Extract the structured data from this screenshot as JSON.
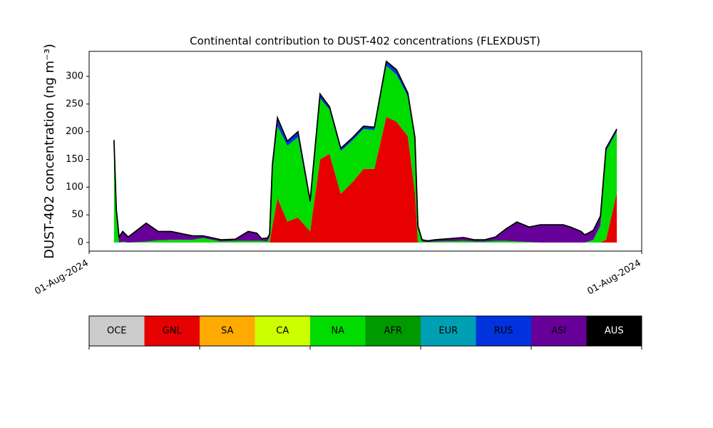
{
  "chart_data": {
    "type": "stacked-area",
    "title": "Continental contribution to DUST-402 concentrations (FLEXDUST)",
    "y_label": "DUST-402 concentration (ng m⁻³)",
    "x": [
      1.08,
      1.18,
      1.3,
      1.46,
      1.7,
      2.48,
      3.0,
      3.56,
      4.49,
      4.95,
      5.73,
      6.35,
      6.91,
      7.28,
      7.49,
      7.74,
      7.84,
      7.96,
      8.18,
      8.61,
      9.07,
      9.6,
      10.03,
      10.44,
      10.93,
      11.46,
      11.92,
      12.39,
      12.91,
      13.35,
      13.84,
      14.15,
      14.28,
      14.46,
      14.71,
      15.02,
      16.26,
      16.72,
      17.19,
      17.65,
      18.12,
      18.58,
      19.11,
      19.6,
      20.59,
      20.9,
      21.37,
      21.52,
      21.68,
      21.9,
      22.21,
      22.45,
      22.92
    ],
    "series": [
      {
        "name": "GNL",
        "color": "#e60000",
        "values": [
          0,
          0,
          0,
          0,
          0,
          0,
          0,
          0,
          0,
          0,
          0,
          0,
          0,
          0,
          0,
          0,
          0,
          30,
          80,
          38,
          45,
          20,
          150,
          160,
          88,
          110,
          133,
          133,
          227,
          218,
          192,
          90,
          0,
          0,
          0,
          0,
          0,
          0,
          0,
          0,
          0,
          0,
          0,
          0,
          0,
          0,
          0,
          0,
          0,
          0,
          0,
          5,
          90
        ]
      },
      {
        "name": "NA",
        "color": "#00dc00",
        "values": [
          180,
          50,
          0,
          2,
          0,
          2,
          4,
          5,
          5,
          8,
          2,
          3,
          3,
          3,
          3,
          2,
          10,
          100,
          130,
          137,
          145,
          50,
          110,
          80,
          77,
          75,
          72,
          70,
          92,
          85,
          72,
          95,
          25,
          2,
          1,
          2,
          3,
          2,
          2,
          3,
          3,
          2,
          1,
          0,
          0,
          0,
          0,
          0,
          2,
          5,
          30,
          160,
          110
        ]
      },
      {
        "name": "RUS",
        "color": "#0033dd",
        "values": [
          3,
          2,
          0,
          0,
          0,
          0,
          0,
          0,
          0,
          0,
          0,
          0,
          0,
          0,
          0,
          0,
          0,
          5,
          10,
          8,
          10,
          5,
          8,
          5,
          5,
          5,
          5,
          5,
          8,
          9,
          6,
          5,
          2,
          0,
          0,
          0,
          0,
          0,
          0,
          0,
          0,
          0,
          0,
          0,
          0,
          0,
          0,
          0,
          0,
          0,
          3,
          5,
          5
        ]
      },
      {
        "name": "ASI",
        "color": "#660099",
        "values": [
          2,
          8,
          10,
          18,
          10,
          33,
          16,
          15,
          7,
          4,
          3,
          3,
          17,
          14,
          4,
          6,
          5,
          5,
          5,
          0,
          0,
          0,
          0,
          0,
          0,
          0,
          0,
          0,
          0,
          0,
          0,
          0,
          3,
          3,
          2,
          3,
          6,
          3,
          3,
          7,
          22,
          35,
          27,
          32,
          32,
          28,
          20,
          14,
          15,
          17,
          15,
          0,
          0
        ]
      }
    ],
    "xlim": [
      0,
      24
    ],
    "xticks": [
      {
        "value": 0,
        "label": "01-Aug-2024"
      },
      {
        "value": 24,
        "label": "01-Aug-2024"
      }
    ],
    "ylim": [
      -15.45,
      345.05
    ],
    "yticks": [
      0,
      50,
      100,
      150,
      200,
      250,
      300
    ],
    "colorbar": [
      {
        "name": "OCE",
        "color": "#cccccc"
      },
      {
        "name": "GNL",
        "color": "#e60000"
      },
      {
        "name": "SA",
        "color": "#ffaa00"
      },
      {
        "name": "CA",
        "color": "#ccff00"
      },
      {
        "name": "NA",
        "color": "#00dc00"
      },
      {
        "name": "AFR",
        "color": "#009900"
      },
      {
        "name": "EUR",
        "color": "#00a0b4"
      },
      {
        "name": "RUS",
        "color": "#0033dd"
      },
      {
        "name": "ASI",
        "color": "#660099"
      },
      {
        "name": "AUS",
        "color": "#000000"
      }
    ]
  }
}
